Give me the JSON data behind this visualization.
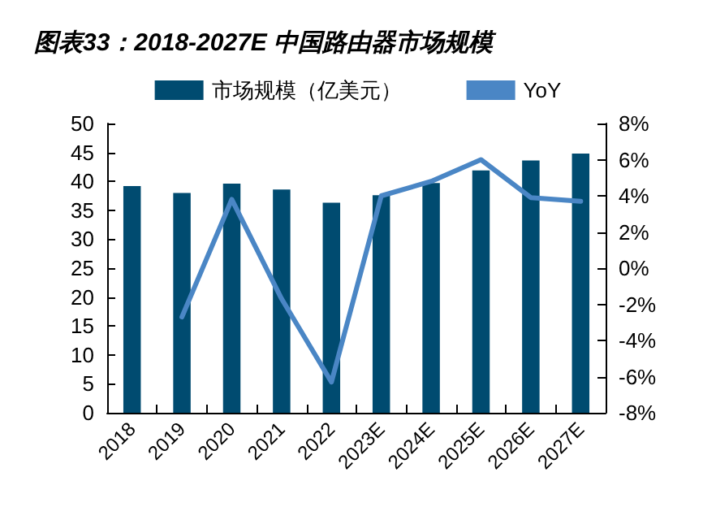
{
  "chart_data": {
    "type": "bar",
    "title": "图表33：2018-2027E 中国路由器市场规模",
    "categories": [
      "2018",
      "2019",
      "2020",
      "2021",
      "2022",
      "2023E",
      "2024E",
      "2025E",
      "2026E",
      "2027E"
    ],
    "series": [
      {
        "name": "市场规模（亿美元）",
        "color": "#004b70",
        "values": [
          39.2,
          38.0,
          39.6,
          38.6,
          36.3,
          37.6,
          39.7,
          41.9,
          43.6,
          44.8
        ]
      },
      {
        "name": "YoY",
        "type": "line",
        "axis": "y2",
        "color": "#4a86c5",
        "values": [
          null,
          -2.7,
          3.8,
          -1.7,
          -6.3,
          4.0,
          4.8,
          6.0,
          3.9,
          3.7
        ]
      }
    ],
    "ylim": [
      0,
      50
    ],
    "yticks": [
      0,
      5,
      10,
      15,
      20,
      25,
      30,
      35,
      40,
      45,
      50
    ],
    "y2lim": [
      -8,
      8
    ],
    "y2ticks": [
      {
        "value": -8,
        "label": "-8%"
      },
      {
        "value": -6,
        "label": "-6%"
      },
      {
        "value": -4,
        "label": "-4%"
      },
      {
        "value": -2,
        "label": "-2%"
      },
      {
        "value": 0,
        "label": "0%"
      },
      {
        "value": 2,
        "label": "2%"
      },
      {
        "value": 4,
        "label": "4%"
      },
      {
        "value": 6,
        "label": "6%"
      },
      {
        "value": 8,
        "label": "8%"
      }
    ],
    "legend": "top",
    "grid": false,
    "marker": "none",
    "line_style": "solid"
  }
}
